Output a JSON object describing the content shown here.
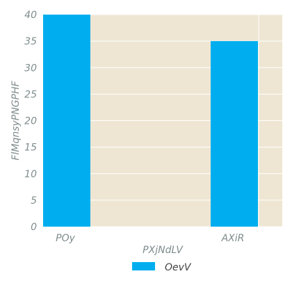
{
  "chart_data": {
    "type": "bar",
    "categories": [
      "POy",
      "AXiR"
    ],
    "series": [
      {
        "name": "OevV",
        "values": [
          40,
          35
        ],
        "color": "#00AEEF"
      }
    ],
    "xlabel": "PXjNdLV",
    "ylabel": "FlMqnsyPNGPHF",
    "ylim": [
      0,
      40
    ],
    "yticks": [
      0,
      5,
      10,
      15,
      20,
      25,
      30,
      35,
      40
    ],
    "grid": true,
    "legend_position": "bottom-center",
    "plot_background": "#EEE6D3",
    "grid_color": "#ffffff",
    "text_color": "#7f8c8d"
  }
}
